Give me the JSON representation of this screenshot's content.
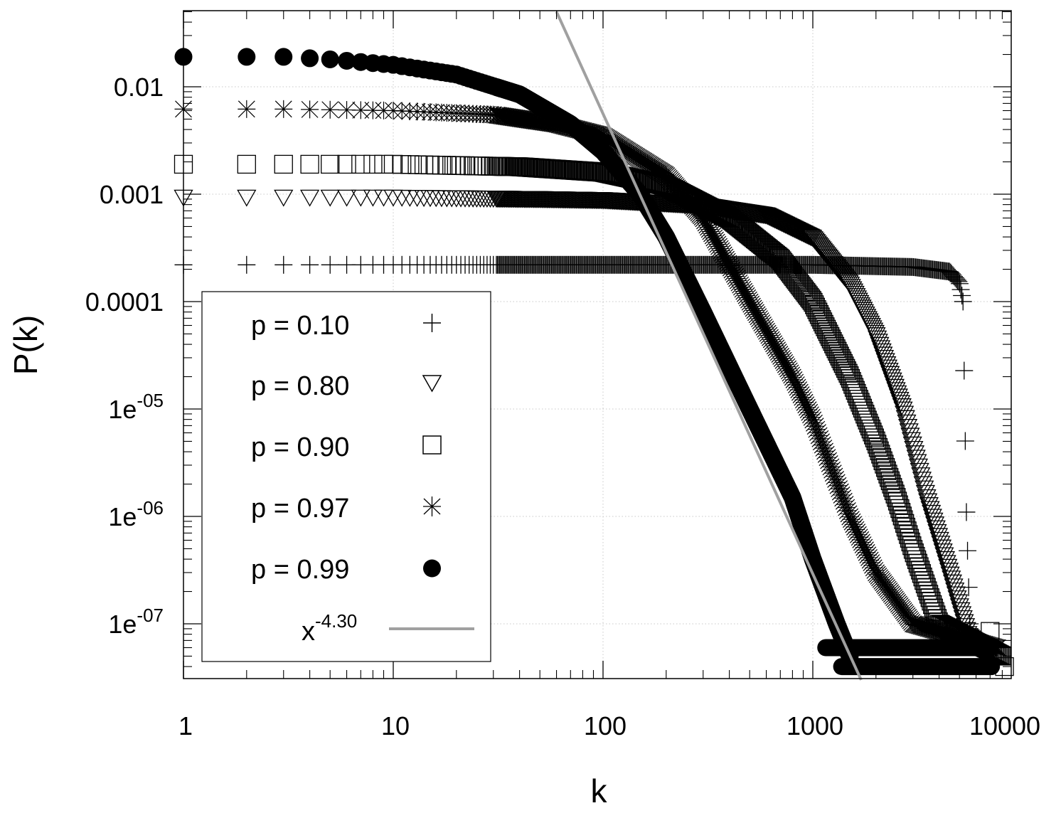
{
  "chart_data": {
    "type": "scatter",
    "title": "",
    "xlabel": "k",
    "ylabel": "P(k)",
    "xscale": "log",
    "yscale": "log",
    "xlim": [
      1,
      8700
    ],
    "ylim": [
      3e-08,
      0.05
    ],
    "grid": true,
    "legend_position": "lower-left (inside)",
    "x_tick_labels": [
      "1",
      "10",
      "100",
      "1000",
      "10000"
    ],
    "x_ticks": [
      1,
      10,
      100,
      1000,
      10000
    ],
    "y_tick_labels": [
      {
        "base": "0.01",
        "exp": ""
      },
      {
        "base": "0.001",
        "exp": ""
      },
      {
        "base": "0.0001",
        "exp": ""
      },
      {
        "base": "1e",
        "exp": "-05"
      },
      {
        "base": "1e",
        "exp": "-06"
      },
      {
        "base": "1e",
        "exp": "-07"
      }
    ],
    "y_ticks": [
      0.01,
      0.001,
      0.0001,
      1e-05,
      1e-06,
      1e-07
    ],
    "series": [
      {
        "name": "p = 0.10",
        "marker": "plus",
        "x": [
          1,
          2,
          3,
          10,
          100,
          1000,
          3000,
          4500,
          5000,
          5200,
          5300,
          5400,
          5600
        ],
        "y": [
          0.00022,
          0.00022,
          0.00022,
          0.00022,
          0.00022,
          0.00022,
          0.00021,
          0.00019,
          0.00015,
          0.0001,
          1e-05,
          1e-06,
          1e-07
        ]
      },
      {
        "name": "p = 0.80",
        "marker": "triangle-down",
        "x": [
          1,
          2,
          3,
          10,
          50,
          100,
          300,
          600,
          1000,
          1500,
          2000,
          2700,
          3500,
          4500,
          5500,
          7000
        ],
        "y": [
          0.00095,
          0.00095,
          0.00095,
          0.00095,
          0.00092,
          0.0009,
          0.0008,
          0.00065,
          0.0004,
          0.00015,
          5e-05,
          1e-05,
          1.5e-06,
          3e-07,
          8e-08,
          5e-08
        ]
      },
      {
        "name": "p = 0.90",
        "marker": "square",
        "x": [
          1,
          2,
          3,
          10,
          40,
          100,
          200,
          400,
          700,
          1000,
          1500,
          2000,
          2500,
          3000,
          4000,
          8000
        ],
        "y": [
          0.0019,
          0.0019,
          0.0019,
          0.0019,
          0.0018,
          0.0016,
          0.0012,
          0.0006,
          0.00025,
          0.0001,
          2e-05,
          5e-06,
          1.5e-06,
          5e-07,
          1e-07,
          5e-08
        ]
      },
      {
        "name": "p = 0.97",
        "marker": "asterisk",
        "x": [
          1,
          2,
          3,
          10,
          30,
          60,
          100,
          200,
          300,
          500,
          800,
          1000,
          1500,
          2000,
          3000,
          7500
        ],
        "y": [
          0.0062,
          0.0062,
          0.0062,
          0.006,
          0.0055,
          0.0045,
          0.0035,
          0.0015,
          0.0006,
          0.0001,
          2e-05,
          8e-06,
          1e-06,
          3e-07,
          1e-07,
          6e-08
        ]
      },
      {
        "name": "p = 0.99",
        "marker": "filled-circle",
        "x": [
          1,
          2,
          3,
          5,
          10,
          20,
          40,
          70,
          100,
          150,
          200,
          300,
          500,
          800,
          1000,
          1300,
          1500
        ],
        "y": [
          0.019,
          0.019,
          0.019,
          0.018,
          0.016,
          0.013,
          0.0085,
          0.0045,
          0.0025,
          0.001,
          0.0004,
          8e-05,
          1e-05,
          1.5e-06,
          4e-07,
          1e-07,
          5e-08
        ]
      },
      {
        "name": "x^-4.30",
        "marker": "line",
        "color": "#a0a0a0",
        "exponent": -4.3,
        "x": [
          60,
          1700
        ],
        "y": [
          0.05,
          3e-08
        ]
      }
    ]
  },
  "legend": {
    "entries": [
      {
        "label": "p = 0.10",
        "symbol": "plus"
      },
      {
        "label": "p = 0.80",
        "symbol": "triangle-down"
      },
      {
        "label": "p = 0.90",
        "symbol": "square"
      },
      {
        "label": "p = 0.97",
        "symbol": "asterisk"
      },
      {
        "label": "p = 0.99",
        "symbol": "filled-circle"
      }
    ],
    "fit_base": "x",
    "fit_exp": "-4.30"
  },
  "colors": {
    "markers": "#000000",
    "fit_line": "#a0a0a0",
    "grid": "#b0b0b0",
    "background": "#ffffff"
  }
}
